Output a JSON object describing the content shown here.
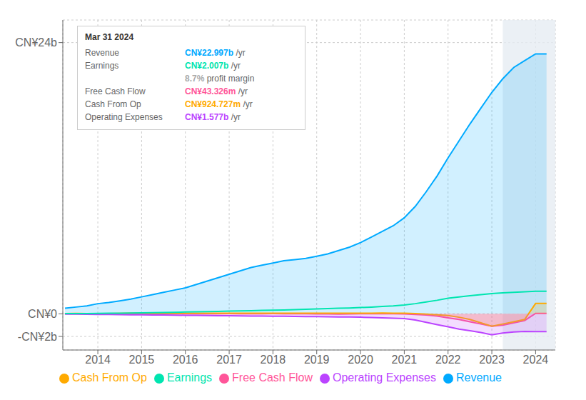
{
  "chart_data": {
    "type": "area",
    "x": [
      2013.25,
      2013.5,
      2013.75,
      2014.0,
      2014.25,
      2014.5,
      2014.75,
      2015.0,
      2015.25,
      2015.5,
      2015.75,
      2016.0,
      2016.25,
      2016.5,
      2016.75,
      2017.0,
      2017.25,
      2017.5,
      2017.75,
      2018.0,
      2018.25,
      2018.5,
      2018.75,
      2019.0,
      2019.25,
      2019.5,
      2019.75,
      2020.0,
      2020.25,
      2020.5,
      2020.75,
      2021.0,
      2021.25,
      2021.5,
      2021.75,
      2022.0,
      2022.25,
      2022.5,
      2022.75,
      2023.0,
      2023.25,
      2023.5,
      2023.75,
      2024.0,
      2024.25
    ],
    "xlim": [
      2013.2,
      2024.45
    ],
    "xticks": [
      2014,
      2015,
      2016,
      2017,
      2018,
      2019,
      2020,
      2021,
      2022,
      2023,
      2024
    ],
    "ylim": [
      -3.2,
      26.0
    ],
    "yticks": [
      {
        "value": -2,
        "label": "-CN¥2b"
      },
      {
        "value": 0,
        "label": "CN¥0"
      },
      {
        "value": 24,
        "label": "CN¥24b"
      }
    ],
    "grid": true,
    "legend": "bottom",
    "series": [
      {
        "name": "Revenue",
        "type": "area",
        "color": "#00aaff",
        "values": [
          0.5,
          0.6,
          0.7,
          0.9,
          1.0,
          1.15,
          1.3,
          1.5,
          1.7,
          1.9,
          2.1,
          2.3,
          2.6,
          2.9,
          3.2,
          3.5,
          3.8,
          4.1,
          4.3,
          4.5,
          4.7,
          4.8,
          4.9,
          5.1,
          5.3,
          5.6,
          5.9,
          6.3,
          6.8,
          7.3,
          7.8,
          8.5,
          9.5,
          10.8,
          12.2,
          13.8,
          15.3,
          16.8,
          18.2,
          19.6,
          20.8,
          21.8,
          22.4,
          23.0,
          23.0
        ]
      },
      {
        "name": "Earnings",
        "type": "line",
        "color": "#00e5b0",
        "values": [
          0.02,
          0.02,
          0.03,
          0.04,
          0.05,
          0.06,
          0.07,
          0.08,
          0.1,
          0.12,
          0.14,
          0.16,
          0.18,
          0.2,
          0.22,
          0.24,
          0.26,
          0.28,
          0.3,
          0.32,
          0.34,
          0.37,
          0.4,
          0.43,
          0.46,
          0.49,
          0.52,
          0.56,
          0.6,
          0.65,
          0.7,
          0.78,
          0.9,
          1.05,
          1.2,
          1.38,
          1.5,
          1.6,
          1.7,
          1.8,
          1.85,
          1.9,
          1.95,
          2.0,
          2.0
        ]
      },
      {
        "name": "Free Cash Flow",
        "type": "area",
        "color": "#ff5599",
        "values": [
          0.01,
          0.01,
          0.01,
          0.0,
          0.01,
          0.02,
          0.02,
          0.03,
          0.02,
          0.01,
          0.0,
          0.01,
          0.0,
          0.01,
          0.01,
          0.02,
          0.01,
          0.0,
          0.01,
          0.02,
          0.01,
          0.01,
          0.0,
          -0.01,
          -0.01,
          -0.02,
          -0.01,
          0.0,
          0.01,
          0.0,
          0.0,
          -0.01,
          -0.05,
          -0.1,
          -0.2,
          -0.35,
          -0.5,
          -0.7,
          -0.9,
          -1.1,
          -1.0,
          -0.8,
          -0.6,
          0.04,
          0.04
        ]
      },
      {
        "name": "Cash From Op",
        "type": "area",
        "color": "#ffaa00",
        "values": [
          0.03,
          0.04,
          0.03,
          0.02,
          0.03,
          0.04,
          0.05,
          0.05,
          0.04,
          0.05,
          0.04,
          0.06,
          0.06,
          0.05,
          0.05,
          0.06,
          0.06,
          0.05,
          0.05,
          0.06,
          0.06,
          0.05,
          0.06,
          0.05,
          0.06,
          0.06,
          0.05,
          0.05,
          0.06,
          0.07,
          0.06,
          0.05,
          0.02,
          -0.02,
          -0.08,
          -0.15,
          -0.3,
          -0.5,
          -0.8,
          -1.1,
          -0.9,
          -0.7,
          -0.5,
          0.92,
          0.92
        ]
      },
      {
        "name": "Operating Expenses",
        "type": "area",
        "color": "#bb44ff",
        "values": [
          -0.02,
          -0.03,
          -0.04,
          -0.05,
          -0.06,
          -0.07,
          -0.08,
          -0.09,
          -0.1,
          -0.11,
          -0.12,
          -0.13,
          -0.14,
          -0.15,
          -0.16,
          -0.17,
          -0.18,
          -0.19,
          -0.2,
          -0.21,
          -0.22,
          -0.23,
          -0.24,
          -0.25,
          -0.26,
          -0.27,
          -0.28,
          -0.3,
          -0.32,
          -0.35,
          -0.38,
          -0.42,
          -0.55,
          -0.75,
          -0.95,
          -1.15,
          -1.35,
          -1.5,
          -1.65,
          -1.85,
          -1.7,
          -1.6,
          -1.55,
          -1.58,
          -1.58
        ]
      }
    ],
    "highlight": {
      "from": 2023.25,
      "color": "#e6ecf2"
    },
    "annotations": [
      {
        "title": "Mar 31 2024",
        "rows": [
          {
            "label": "Revenue",
            "text": "CN¥22.997b",
            "suffix": " /yr",
            "color": "#00aaff"
          },
          {
            "label": "Earnings",
            "text": "CN¥2.007b",
            "suffix": " /yr",
            "color": "#00e5b0"
          },
          {
            "text": "8.7%",
            "suffix": " profit margin",
            "color": "#aaaaaa"
          },
          {
            "label": "Free Cash Flow",
            "text": "CN¥43.326m",
            "suffix": " /yr",
            "color": "#ff5599"
          },
          {
            "label": "Cash From Op",
            "text": "CN¥924.727m",
            "suffix": " /yr",
            "color": "#ffaa00"
          },
          {
            "label": "Operating Expenses",
            "text": "CN¥1.577b",
            "suffix": " /yr",
            "color": "#bb44ff"
          }
        ]
      }
    ]
  }
}
